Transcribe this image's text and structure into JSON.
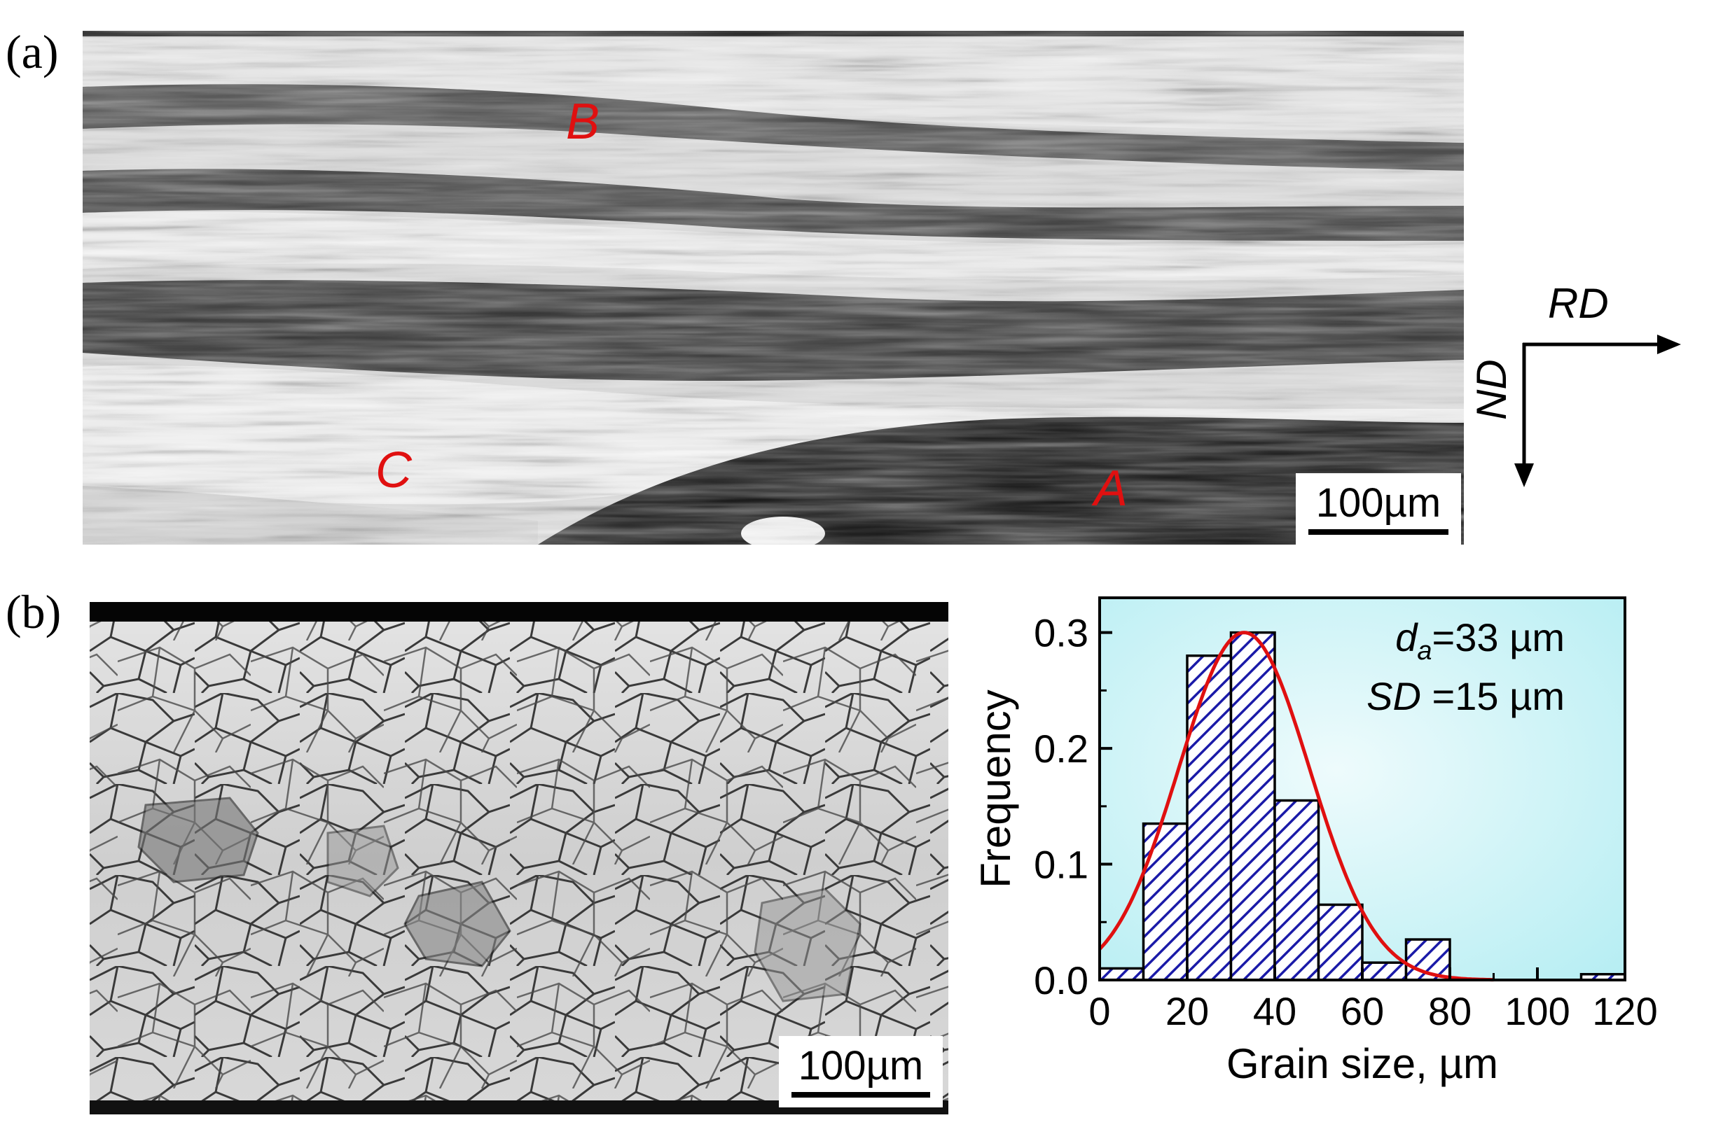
{
  "figure": {
    "panel_a": {
      "label": "(a)",
      "scale_bar": "100µm",
      "region_labels": {
        "A": "A",
        "B": "B",
        "C": "C"
      },
      "axes": {
        "rd": "RD",
        "nd": "ND"
      }
    },
    "panel_b": {
      "label": "(b)",
      "scale_bar": "100µm"
    }
  },
  "colors": {
    "region_label": "#e01010",
    "fit_curve": "#e01010",
    "bar_hatch": "#1a1aa8",
    "plot_bg_center": "#eefbfc",
    "plot_bg_edge": "#b7eef3"
  },
  "chart_data": {
    "type": "bar",
    "xlabel": "Grain size, µm",
    "ylabel": "Frequency",
    "xlim": [
      0,
      120
    ],
    "ylim": [
      0,
      0.33
    ],
    "xticks": [
      "0",
      "20",
      "40",
      "60",
      "80",
      "100",
      "120"
    ],
    "yticks": [
      "0.0",
      "0.1",
      "0.2",
      "0.3"
    ],
    "bins": [
      {
        "from": 0,
        "to": 10,
        "value": 0.01
      },
      {
        "from": 10,
        "to": 20,
        "value": 0.135
      },
      {
        "from": 20,
        "to": 30,
        "value": 0.28
      },
      {
        "from": 30,
        "to": 40,
        "value": 0.3
      },
      {
        "from": 40,
        "to": 50,
        "value": 0.155
      },
      {
        "from": 50,
        "to": 60,
        "value": 0.065
      },
      {
        "from": 60,
        "to": 70,
        "value": 0.015
      },
      {
        "from": 70,
        "to": 80,
        "value": 0.035
      },
      {
        "from": 110,
        "to": 120,
        "value": 0.005
      }
    ],
    "fit": {
      "type": "normal",
      "mean": 33,
      "sd": 15,
      "peak": 0.3
    },
    "annotations": [
      {
        "symbol": "d",
        "subscript": "a",
        "value": "=33 µm"
      },
      {
        "symbol": "SD",
        "subscript": "",
        "value": "=15 µm"
      }
    ],
    "grid": false
  }
}
